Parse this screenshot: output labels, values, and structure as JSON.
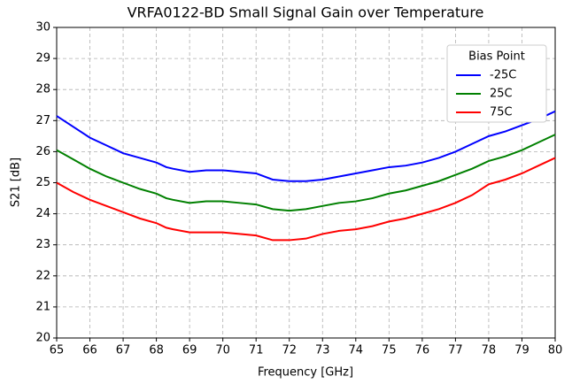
{
  "chart_data": {
    "type": "line",
    "title": "VRFA0122-BD Small Signal Gain over Temperature",
    "xlabel": "Frequency [GHz]",
    "ylabel": "S21 [dB]",
    "x": [
      65,
      65.5,
      66,
      66.5,
      67,
      67.5,
      68,
      68.3,
      68.5,
      69,
      69.5,
      70,
      70.5,
      71,
      71.5,
      72,
      72.5,
      73,
      73.5,
      74,
      74.5,
      75,
      75.5,
      76,
      76.5,
      77,
      77.5,
      78,
      78.5,
      79,
      79.5,
      80
    ],
    "series": [
      {
        "name": "-25C",
        "color": "#0000ff",
        "values": [
          27.15,
          26.8,
          26.45,
          26.2,
          25.95,
          25.8,
          25.65,
          25.5,
          25.45,
          25.35,
          25.4,
          25.4,
          25.35,
          25.3,
          25.1,
          25.05,
          25.05,
          25.1,
          25.2,
          25.3,
          25.4,
          25.5,
          25.55,
          25.65,
          25.8,
          26.0,
          26.25,
          26.5,
          26.65,
          26.85,
          27.05,
          27.3
        ]
      },
      {
        "name": "25C",
        "color": "#008000",
        "values": [
          26.05,
          25.75,
          25.45,
          25.2,
          25.0,
          24.8,
          24.65,
          24.5,
          24.45,
          24.35,
          24.4,
          24.4,
          24.35,
          24.3,
          24.15,
          24.1,
          24.15,
          24.25,
          24.35,
          24.4,
          24.5,
          24.65,
          24.75,
          24.9,
          25.05,
          25.25,
          25.45,
          25.7,
          25.85,
          26.05,
          26.3,
          26.55
        ]
      },
      {
        "name": "75C",
        "color": "#ff0000",
        "values": [
          25.0,
          24.7,
          24.45,
          24.25,
          24.05,
          23.85,
          23.7,
          23.55,
          23.5,
          23.4,
          23.4,
          23.4,
          23.35,
          23.3,
          23.15,
          23.15,
          23.2,
          23.35,
          23.45,
          23.5,
          23.6,
          23.75,
          23.85,
          24.0,
          24.15,
          24.35,
          24.6,
          24.95,
          25.1,
          25.3,
          25.55,
          25.8
        ]
      }
    ],
    "legend_title": "Bias Point",
    "legend": "upper right",
    "grid": true,
    "xlim": [
      65,
      80
    ],
    "xticks": [
      65,
      66,
      67,
      68,
      69,
      70,
      71,
      72,
      73,
      74,
      75,
      76,
      77,
      78,
      79,
      80
    ],
    "ylim": [
      20,
      30
    ],
    "yticks": [
      20,
      21,
      22,
      23,
      24,
      25,
      26,
      27,
      28,
      29,
      30
    ]
  }
}
